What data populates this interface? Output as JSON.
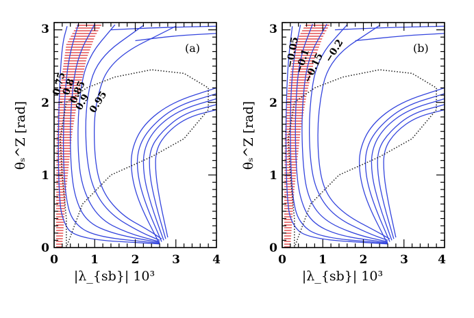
{
  "chart_data": [
    {
      "type": "contour",
      "panel_label": "(a)",
      "xlabel": "|λ_{sb}| 10³",
      "ylabel": "θₛ^Z [rad]",
      "x_range": [
        0,
        4
      ],
      "y_range": [
        0,
        3.1
      ],
      "x_ticks": [
        "0",
        "1",
        "2",
        "3",
        "4"
      ],
      "y_ticks": [
        "0",
        "1",
        "2",
        "3"
      ],
      "contour_levels": [
        "0.75",
        "0.8",
        "0.85",
        "0.9",
        "0.95"
      ],
      "excluded_region": {
        "style": "red-hatched",
        "lower": [
          [
            0.05,
            0
          ],
          [
            0.05,
            0.5
          ],
          [
            0.06,
            1.5
          ],
          [
            0.1,
            2
          ],
          [
            0.3,
            2.8
          ],
          [
            0.6,
            3.1
          ]
        ],
        "upper": [
          [
            0.2,
            0
          ],
          [
            0.3,
            0.8
          ],
          [
            0.45,
            1.6
          ],
          [
            0.6,
            2.1
          ],
          [
            0.8,
            2.6
          ],
          [
            1.0,
            2.9
          ],
          [
            1.2,
            3.1
          ]
        ]
      },
      "dotted_boundary": [
        [
          0.3,
          0
        ],
        [
          0.7,
          0.6
        ],
        [
          1.4,
          1.0
        ],
        [
          2.4,
          1.25
        ],
        [
          3.2,
          1.5
        ],
        [
          3.8,
          1.9
        ],
        [
          3.8,
          2.2
        ],
        [
          3.2,
          2.4
        ],
        [
          2.4,
          2.45
        ],
        [
          1.5,
          2.35
        ],
        [
          0.8,
          2.2
        ],
        [
          0.3,
          2.0
        ],
        [
          0.15,
          1.5
        ],
        [
          0.2,
          1.0
        ],
        [
          0.3,
          0.4
        ],
        [
          0.3,
          0
        ]
      ],
      "series": [
        {
          "name": "left-1",
          "points": [
            [
              0.32,
              3.05
            ],
            [
              0.2,
              2.8
            ],
            [
              0.13,
              2.2
            ],
            [
              0.1,
              1.4
            ],
            [
              0.12,
              0.8
            ],
            [
              0.18,
              0.4
            ],
            [
              0.5,
              0.12
            ],
            [
              2.6,
              0.05
            ]
          ]
        },
        {
          "name": "left-2",
          "points": [
            [
              0.6,
              3.08
            ],
            [
              0.35,
              2.6
            ],
            [
              0.25,
              2.0
            ],
            [
              0.22,
              1.3
            ],
            [
              0.28,
              0.7
            ],
            [
              0.45,
              0.35
            ],
            [
              1.0,
              0.15
            ],
            [
              2.6,
              0.06
            ]
          ]
        },
        {
          "name": "left-3",
          "points": [
            [
              1.0,
              3.08
            ],
            [
              0.55,
              2.6
            ],
            [
              0.4,
              1.9
            ],
            [
              0.4,
              1.2
            ],
            [
              0.5,
              0.7
            ],
            [
              0.8,
              0.35
            ],
            [
              1.5,
              0.18
            ],
            [
              2.6,
              0.07
            ]
          ]
        },
        {
          "name": "left-4",
          "points": [
            [
              1.5,
              3.07
            ],
            [
              0.8,
              2.6
            ],
            [
              0.6,
              2.0
            ],
            [
              0.58,
              1.3
            ],
            [
              0.7,
              0.8
            ],
            [
              1.1,
              0.4
            ],
            [
              1.8,
              0.2
            ],
            [
              2.6,
              0.08
            ]
          ]
        },
        {
          "name": "left-5",
          "points": [
            [
              2.2,
              3.06
            ],
            [
              1.05,
              2.6
            ],
            [
              0.78,
              2.0
            ],
            [
              0.78,
              1.3
            ],
            [
              0.95,
              0.8
            ],
            [
              1.4,
              0.45
            ],
            [
              2.1,
              0.22
            ],
            [
              2.6,
              0.1
            ]
          ]
        },
        {
          "name": "left-6",
          "points": [
            [
              3.0,
              3.05
            ],
            [
              1.4,
              2.6
            ],
            [
              1.0,
              2.0
            ],
            [
              0.98,
              1.3
            ],
            [
              1.15,
              0.8
            ],
            [
              1.65,
              0.45
            ],
            [
              2.3,
              0.25
            ],
            [
              2.65,
              0.12
            ]
          ]
        },
        {
          "name": "top-1",
          "points": [
            [
              1.4,
              3.0
            ],
            [
              2.5,
              3.03
            ],
            [
              4.0,
              3.05
            ]
          ]
        },
        {
          "name": "top-2",
          "points": [
            [
              2.0,
              2.85
            ],
            [
              3.0,
              2.92
            ],
            [
              4.0,
              2.95
            ]
          ]
        },
        {
          "name": "right-1",
          "points": [
            [
              2.6,
              0.05
            ],
            [
              2.1,
              0.6
            ],
            [
              1.9,
              1.0
            ],
            [
              1.9,
              1.35
            ],
            [
              2.2,
              1.7
            ],
            [
              2.9,
              2.0
            ],
            [
              4.0,
              2.2
            ]
          ]
        },
        {
          "name": "right-2",
          "points": [
            [
              2.65,
              0.08
            ],
            [
              2.25,
              0.6
            ],
            [
              2.05,
              1.0
            ],
            [
              2.05,
              1.35
            ],
            [
              2.35,
              1.65
            ],
            [
              3.0,
              1.95
            ],
            [
              4.0,
              2.12
            ]
          ]
        },
        {
          "name": "right-3",
          "points": [
            [
              2.7,
              0.1
            ],
            [
              2.38,
              0.6
            ],
            [
              2.2,
              1.0
            ],
            [
              2.2,
              1.35
            ],
            [
              2.5,
              1.65
            ],
            [
              3.1,
              1.9
            ],
            [
              4.0,
              2.05
            ]
          ]
        },
        {
          "name": "right-4",
          "points": [
            [
              2.75,
              0.12
            ],
            [
              2.5,
              0.6
            ],
            [
              2.35,
              1.0
            ],
            [
              2.35,
              1.35
            ],
            [
              2.65,
              1.6
            ],
            [
              3.2,
              1.85
            ],
            [
              4.0,
              1.97
            ]
          ]
        },
        {
          "name": "right-5",
          "points": [
            [
              2.8,
              0.14
            ],
            [
              2.62,
              0.6
            ],
            [
              2.5,
              1.0
            ],
            [
              2.5,
              1.35
            ],
            [
              2.8,
              1.6
            ],
            [
              3.3,
              1.8
            ],
            [
              4.0,
              1.9
            ]
          ]
        }
      ]
    },
    {
      "type": "contour",
      "panel_label": "(b)",
      "xlabel": "|λ_{sb}| 10³",
      "ylabel": "θₛ^Z [rad]",
      "x_range": [
        0,
        4
      ],
      "y_range": [
        0,
        3.1
      ],
      "x_ticks": [
        "0",
        "1",
        "2",
        "3",
        "4"
      ],
      "y_ticks": [
        "0",
        "1",
        "2",
        "3"
      ],
      "contour_levels": [
        "−0.05",
        "−0.1",
        "−0.15",
        "−0.2"
      ],
      "excluded_region": {
        "style": "red-hatched",
        "lower": [
          [
            0.05,
            0
          ],
          [
            0.05,
            0.5
          ],
          [
            0.06,
            1.5
          ],
          [
            0.1,
            2
          ],
          [
            0.3,
            2.8
          ],
          [
            0.6,
            3.1
          ]
        ],
        "upper": [
          [
            0.2,
            0
          ],
          [
            0.3,
            0.8
          ],
          [
            0.45,
            1.6
          ],
          [
            0.6,
            2.1
          ],
          [
            0.8,
            2.6
          ],
          [
            1.0,
            2.9
          ],
          [
            1.2,
            3.1
          ]
        ]
      },
      "dotted_boundary": [
        [
          0.3,
          0
        ],
        [
          0.7,
          0.6
        ],
        [
          1.4,
          1.0
        ],
        [
          2.4,
          1.25
        ],
        [
          3.2,
          1.5
        ],
        [
          3.8,
          1.9
        ],
        [
          3.8,
          2.2
        ],
        [
          3.2,
          2.4
        ],
        [
          2.4,
          2.45
        ],
        [
          1.5,
          2.35
        ],
        [
          0.8,
          2.2
        ],
        [
          0.3,
          2.0
        ],
        [
          0.15,
          1.5
        ],
        [
          0.2,
          1.0
        ],
        [
          0.3,
          0.4
        ],
        [
          0.3,
          0
        ]
      ],
      "series": [
        {
          "name": "left-1",
          "points": [
            [
              0.25,
              3.05
            ],
            [
              0.15,
              2.6
            ],
            [
              0.1,
              2.0
            ],
            [
              0.09,
              1.3
            ],
            [
              0.12,
              0.7
            ],
            [
              0.2,
              0.35
            ],
            [
              0.6,
              0.12
            ],
            [
              2.6,
              0.05
            ]
          ]
        },
        {
          "name": "left-2",
          "points": [
            [
              0.45,
              3.07
            ],
            [
              0.28,
              2.6
            ],
            [
              0.2,
              2.0
            ],
            [
              0.2,
              1.3
            ],
            [
              0.25,
              0.7
            ],
            [
              0.4,
              0.35
            ],
            [
              0.9,
              0.14
            ],
            [
              2.6,
              0.06
            ]
          ]
        },
        {
          "name": "left-3",
          "points": [
            [
              0.75,
              3.08
            ],
            [
              0.42,
              2.6
            ],
            [
              0.32,
              1.9
            ],
            [
              0.33,
              1.2
            ],
            [
              0.42,
              0.7
            ],
            [
              0.7,
              0.35
            ],
            [
              1.4,
              0.16
            ],
            [
              2.6,
              0.07
            ]
          ]
        },
        {
          "name": "left-4",
          "points": [
            [
              1.1,
              3.08
            ],
            [
              0.62,
              2.6
            ],
            [
              0.48,
              1.9
            ],
            [
              0.5,
              1.2
            ],
            [
              0.62,
              0.7
            ],
            [
              1.0,
              0.38
            ],
            [
              1.8,
              0.18
            ],
            [
              2.6,
              0.08
            ]
          ]
        },
        {
          "name": "left-5",
          "points": [
            [
              1.6,
              3.07
            ],
            [
              0.85,
              2.6
            ],
            [
              0.66,
              1.9
            ],
            [
              0.68,
              1.2
            ],
            [
              0.85,
              0.75
            ],
            [
              1.3,
              0.42
            ],
            [
              2.1,
              0.2
            ],
            [
              2.6,
              0.1
            ]
          ]
        },
        {
          "name": "left-6",
          "points": [
            [
              2.4,
              3.06
            ],
            [
              1.15,
              2.6
            ],
            [
              0.88,
              1.9
            ],
            [
              0.88,
              1.2
            ],
            [
              1.05,
              0.75
            ],
            [
              1.55,
              0.45
            ],
            [
              2.3,
              0.23
            ],
            [
              2.65,
              0.12
            ]
          ]
        },
        {
          "name": "top-1",
          "points": [
            [
              1.3,
              3.0
            ],
            [
              2.5,
              3.03
            ],
            [
              4.0,
              3.05
            ]
          ]
        },
        {
          "name": "top-2",
          "points": [
            [
              1.8,
              2.85
            ],
            [
              3.0,
              2.92
            ],
            [
              4.0,
              2.95
            ]
          ]
        },
        {
          "name": "right-1",
          "points": [
            [
              2.6,
              0.05
            ],
            [
              2.1,
              0.6
            ],
            [
              1.9,
              1.0
            ],
            [
              1.9,
              1.35
            ],
            [
              2.2,
              1.7
            ],
            [
              2.9,
              2.0
            ],
            [
              4.0,
              2.2
            ]
          ]
        },
        {
          "name": "right-2",
          "points": [
            [
              2.65,
              0.08
            ],
            [
              2.25,
              0.6
            ],
            [
              2.05,
              1.0
            ],
            [
              2.05,
              1.35
            ],
            [
              2.35,
              1.65
            ],
            [
              3.0,
              1.95
            ],
            [
              4.0,
              2.12
            ]
          ]
        },
        {
          "name": "right-3",
          "points": [
            [
              2.7,
              0.1
            ],
            [
              2.38,
              0.6
            ],
            [
              2.2,
              1.0
            ],
            [
              2.2,
              1.35
            ],
            [
              2.5,
              1.65
            ],
            [
              3.1,
              1.9
            ],
            [
              4.0,
              2.05
            ]
          ]
        },
        {
          "name": "right-4",
          "points": [
            [
              2.75,
              0.12
            ],
            [
              2.5,
              0.6
            ],
            [
              2.35,
              1.0
            ],
            [
              2.35,
              1.35
            ],
            [
              2.65,
              1.6
            ],
            [
              3.2,
              1.85
            ],
            [
              4.0,
              1.97
            ]
          ]
        },
        {
          "name": "right-5",
          "points": [
            [
              2.8,
              0.14
            ],
            [
              2.62,
              0.6
            ],
            [
              2.5,
              1.0
            ],
            [
              2.5,
              1.35
            ],
            [
              2.8,
              1.6
            ],
            [
              3.3,
              1.8
            ],
            [
              4.0,
              1.9
            ]
          ]
        }
      ]
    }
  ],
  "colors": {
    "contour": "#3344dd",
    "hatch": "#dd2222",
    "dotted": "#222222",
    "axis": "#000000"
  }
}
